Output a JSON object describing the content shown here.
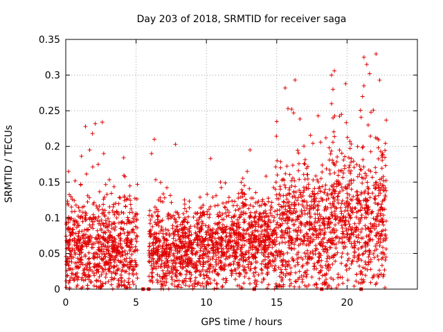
{
  "chart_data": {
    "type": "scatter",
    "title": "Day 203 of 2018, SRMTID for receiver saga",
    "xlabel": "GPS time / hours",
    "ylabel": "SRMTID / TECUs",
    "xlim": [
      0,
      25
    ],
    "ylim": [
      0,
      0.35
    ],
    "grid": true,
    "x_ticks": [
      0,
      5,
      10,
      15,
      20
    ],
    "x_tick_labels": [
      "0",
      "5",
      "10",
      "15",
      "20"
    ],
    "y_ticks": [
      0,
      0.05,
      0.1,
      0.15,
      0.2,
      0.25,
      0.3,
      0.35
    ],
    "y_tick_labels": [
      "0",
      "0.05",
      "0.1",
      "0.15",
      "0.2",
      "0.25",
      "0.3",
      "0.35"
    ],
    "series": [
      {
        "name": "SRMTID",
        "marker": "+",
        "color": "#e00000",
        "segments": [
          {
            "start": 0.0,
            "end": 5.1,
            "base": 0.06,
            "spread": 0.045,
            "outliers": [
              [
                1.4,
                0.228
              ],
              [
                1.9,
                0.218
              ],
              [
                2.1,
                0.232
              ],
              [
                2.6,
                0.234
              ],
              [
                1.7,
                0.195
              ],
              [
                0.2,
                0.165
              ],
              [
                2.7,
                0.19
              ]
            ]
          },
          {
            "start": 5.9,
            "end": 10.6,
            "base": 0.055,
            "spread": 0.04,
            "outliers": [
              [
                6.3,
                0.21
              ],
              [
                7.8,
                0.203
              ],
              [
                10.3,
                0.183
              ],
              [
                6.1,
                0.19
              ]
            ]
          },
          {
            "start": 10.6,
            "end": 14.9,
            "base": 0.065,
            "spread": 0.04,
            "outliers": [
              [
                13.1,
                0.195
              ],
              [
                12.9,
                0.165
              ],
              [
                11.0,
                0.15
              ]
            ]
          },
          {
            "start": 14.9,
            "end": 18.8,
            "base": 0.08,
            "spread": 0.06,
            "outliers": [
              [
                15.6,
                0.282
              ],
              [
                16.3,
                0.293
              ],
              [
                15.8,
                0.253
              ],
              [
                16.2,
                0.247
              ],
              [
                15.0,
                0.235
              ]
            ]
          },
          {
            "start": 18.8,
            "end": 21.0,
            "base": 0.1,
            "spread": 0.07,
            "outliers": [
              [
                18.9,
                0.3
              ],
              [
                19.1,
                0.306
              ],
              [
                19.0,
                0.28
              ],
              [
                19.9,
                0.288
              ],
              [
                19.6,
                0.245
              ],
              [
                18.9,
                0.26
              ]
            ]
          },
          {
            "start": 21.0,
            "end": 22.8,
            "base": 0.095,
            "spread": 0.065,
            "outliers": [
              [
                21.2,
                0.325
              ],
              [
                21.4,
                0.315
              ],
              [
                21.6,
                0.302
              ],
              [
                21.2,
                0.285
              ],
              [
                21.1,
                0.27
              ],
              [
                21.7,
                0.248
              ],
              [
                21.5,
                0.23
              ]
            ]
          }
        ],
        "zero_markers": [
          5.5,
          5.9,
          13.4,
          18.2,
          21.0
        ]
      }
    ]
  }
}
